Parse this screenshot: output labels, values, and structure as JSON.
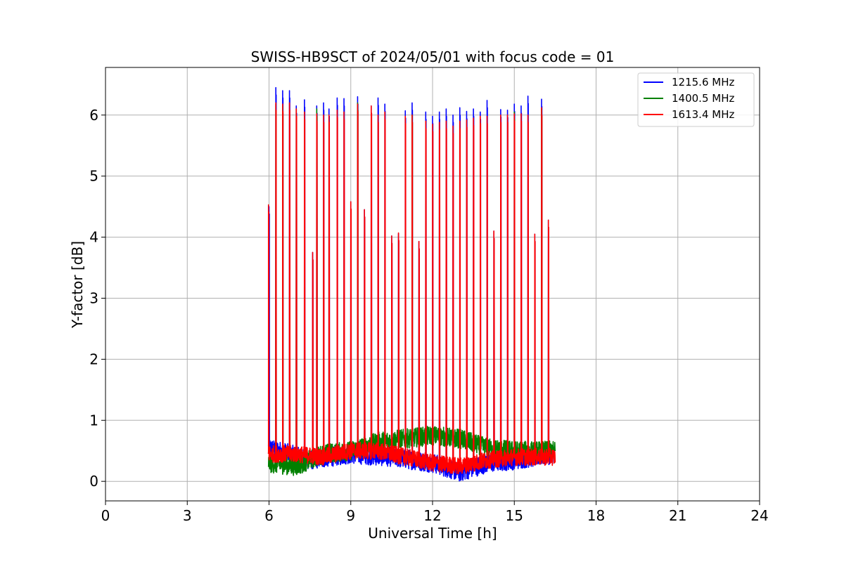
{
  "chart_data": {
    "type": "line",
    "title": "SWISS-HB9SCT of 2024/05/01 with focus code = 01",
    "xlabel": "Universal Time [h]",
    "ylabel": "Y-factor [dB]",
    "xlim": [
      0,
      24
    ],
    "ylim": [
      -0.32,
      6.78
    ],
    "x_ticks": [
      0,
      3,
      6,
      9,
      12,
      15,
      18,
      21,
      24
    ],
    "y_ticks": [
      0,
      1,
      2,
      3,
      4,
      5,
      6
    ],
    "grid": true,
    "legend_position": "top-right",
    "data_range_x": [
      5.98,
      16.5
    ],
    "series": [
      {
        "name": "1215.6 MHz",
        "color": "#0000ff",
        "baseline": [
          [
            6.0,
            0.55
          ],
          [
            7.5,
            0.35
          ],
          [
            9.0,
            0.45
          ],
          [
            10.5,
            0.4
          ],
          [
            12.0,
            0.3
          ],
          [
            13.0,
            0.15
          ],
          [
            14.0,
            0.3
          ],
          [
            15.0,
            0.35
          ],
          [
            16.5,
            0.45
          ]
        ],
        "spikes": [
          [
            6.0,
            4.5
          ],
          [
            6.25,
            6.45
          ],
          [
            6.5,
            6.4
          ],
          [
            6.75,
            6.4
          ],
          [
            7.0,
            6.15
          ],
          [
            7.3,
            6.25
          ],
          [
            7.6,
            3.75
          ],
          [
            7.75,
            6.15
          ],
          [
            8.0,
            6.2
          ],
          [
            8.2,
            6.1
          ],
          [
            8.5,
            6.28
          ],
          [
            8.75,
            6.27
          ],
          [
            9.0,
            4.58
          ],
          [
            9.25,
            6.3
          ],
          [
            9.5,
            4.45
          ],
          [
            9.75,
            6.15
          ],
          [
            10.0,
            6.28
          ],
          [
            10.25,
            6.18
          ],
          [
            10.5,
            4.02
          ],
          [
            10.75,
            4.06
          ],
          [
            11.0,
            6.07
          ],
          [
            11.25,
            6.2
          ],
          [
            11.5,
            3.93
          ],
          [
            11.75,
            6.05
          ],
          [
            12.0,
            5.98
          ],
          [
            12.25,
            6.05
          ],
          [
            12.5,
            6.1
          ],
          [
            12.75,
            6.0
          ],
          [
            13.0,
            6.12
          ],
          [
            13.25,
            6.06
          ],
          [
            13.5,
            6.1
          ],
          [
            13.75,
            6.05
          ],
          [
            14.0,
            6.24
          ],
          [
            14.25,
            4.1
          ],
          [
            14.5,
            6.09
          ],
          [
            14.75,
            6.08
          ],
          [
            15.0,
            6.18
          ],
          [
            15.25,
            6.15
          ],
          [
            15.5,
            6.31
          ],
          [
            15.75,
            4.05
          ],
          [
            16.0,
            6.26
          ],
          [
            16.25,
            4.28
          ]
        ]
      },
      {
        "name": "1400.5 MHz",
        "color": "#008000",
        "baseline": [
          [
            6.0,
            0.3
          ],
          [
            7.0,
            0.25
          ],
          [
            8.0,
            0.45
          ],
          [
            9.0,
            0.5
          ],
          [
            10.0,
            0.65
          ],
          [
            11.0,
            0.7
          ],
          [
            12.0,
            0.75
          ],
          [
            13.0,
            0.7
          ],
          [
            14.0,
            0.55
          ],
          [
            15.0,
            0.5
          ],
          [
            16.5,
            0.5
          ]
        ],
        "spikes": [
          [
            6.25,
            6.18
          ],
          [
            6.5,
            6.15
          ],
          [
            7.0,
            6.1
          ],
          [
            7.75,
            6.1
          ],
          [
            9.25,
            6.2
          ],
          [
            11.25,
            6.0
          ],
          [
            15.0,
            6.05
          ],
          [
            16.0,
            6.1
          ]
        ]
      },
      {
        "name": "1613.4 MHz",
        "color": "#ff0000",
        "baseline": [
          [
            6.0,
            0.45
          ],
          [
            7.0,
            0.45
          ],
          [
            8.0,
            0.4
          ],
          [
            9.0,
            0.5
          ],
          [
            10.0,
            0.5
          ],
          [
            11.0,
            0.4
          ],
          [
            12.0,
            0.3
          ],
          [
            13.0,
            0.25
          ],
          [
            14.0,
            0.35
          ],
          [
            15.0,
            0.4
          ],
          [
            16.5,
            0.4
          ]
        ],
        "spikes": [
          [
            5.98,
            4.53
          ],
          [
            6.25,
            6.2
          ],
          [
            6.5,
            6.18
          ],
          [
            6.75,
            6.2
          ],
          [
            7.0,
            6.1
          ],
          [
            7.3,
            6.05
          ],
          [
            7.6,
            3.75
          ],
          [
            7.75,
            6.02
          ],
          [
            8.0,
            6.0
          ],
          [
            8.2,
            6.0
          ],
          [
            8.5,
            6.08
          ],
          [
            8.75,
            6.05
          ],
          [
            9.0,
            4.58
          ],
          [
            9.25,
            6.18
          ],
          [
            9.5,
            4.45
          ],
          [
            9.75,
            6.15
          ],
          [
            10.0,
            6.0
          ],
          [
            10.25,
            6.05
          ],
          [
            10.5,
            4.02
          ],
          [
            10.75,
            4.07
          ],
          [
            11.0,
            5.98
          ],
          [
            11.25,
            6.0
          ],
          [
            11.5,
            3.93
          ],
          [
            11.75,
            5.9
          ],
          [
            12.0,
            5.85
          ],
          [
            12.25,
            5.88
          ],
          [
            12.5,
            5.9
          ],
          [
            12.75,
            5.82
          ],
          [
            13.0,
            5.9
          ],
          [
            13.25,
            5.92
          ],
          [
            13.5,
            5.95
          ],
          [
            13.75,
            5.98
          ],
          [
            14.0,
            5.98
          ],
          [
            14.25,
            4.1
          ],
          [
            14.5,
            6.0
          ],
          [
            14.75,
            6.0
          ],
          [
            15.0,
            6.02
          ],
          [
            15.25,
            6.02
          ],
          [
            15.5,
            6.0
          ],
          [
            15.75,
            4.05
          ],
          [
            16.0,
            6.12
          ],
          [
            16.25,
            4.28
          ]
        ]
      }
    ]
  }
}
